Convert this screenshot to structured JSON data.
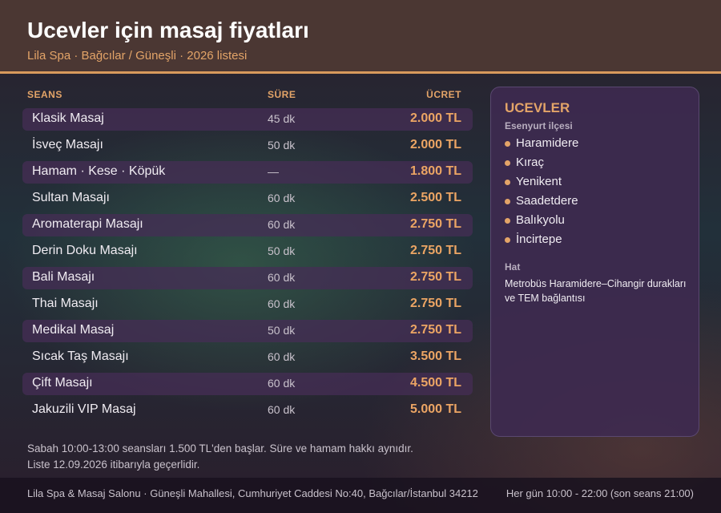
{
  "header": {
    "title": "Ucevler için masaj fiyatları",
    "subtitle": "Lila Spa · Bağcılar / Güneşli · 2026 listesi"
  },
  "table": {
    "columns": [
      "SEANS",
      "SÜRE",
      "ÜCRET"
    ],
    "rows": [
      [
        "Klasik Masaj",
        "45 dk",
        "2.000 TL"
      ],
      [
        "İsveç Masajı",
        "50 dk",
        "2.000 TL"
      ],
      [
        "Hamam · Kese · Köpük",
        "—",
        "1.800 TL"
      ],
      [
        "Sultan Masajı",
        "60 dk",
        "2.500 TL"
      ],
      [
        "Aromaterapi Masajı",
        "60 dk",
        "2.750 TL"
      ],
      [
        "Derin Doku Masajı",
        "50 dk",
        "2.750 TL"
      ],
      [
        "Bali Masajı",
        "60 dk",
        "2.750 TL"
      ],
      [
        "Thai Masajı",
        "60 dk",
        "2.750 TL"
      ],
      [
        "Medikal Masaj",
        "50 dk",
        "2.750 TL"
      ],
      [
        "Sıcak Taş Masajı",
        "60 dk",
        "3.500 TL"
      ],
      [
        "Çift Masajı",
        "60 dk",
        "4.500 TL"
      ],
      [
        "Jakuzili VIP Masaj",
        "60 dk",
        "5.000 TL"
      ]
    ]
  },
  "sidebar": {
    "title": "UCEVLER",
    "subtitle": "Esenyurt ilçesi",
    "items": [
      "Haramidere",
      "Kıraç",
      "Yenikent",
      "Saadetdere",
      "Balıkyolu",
      "İncirtepe"
    ],
    "line_label": "Hat",
    "line_text": "Metrobüs Haramidere–Cihangir durakları ve TEM bağlantısı"
  },
  "notes": [
    "Sabah 10:00-13:00 seansları 1.500 TL'den başlar. Süre ve hamam hakkı aynıdır.",
    "Liste 12.09.2026 itibarıyla geçerlidir."
  ],
  "footer": {
    "address": "Lila Spa & Masaj Salonu · Güneşli Mahallesi, Cumhuriyet Caddesi No:40, Bağcılar/İstanbul 34212",
    "hours": "Her gün 10:00 - 22:00 (son seans 21:00)"
  }
}
